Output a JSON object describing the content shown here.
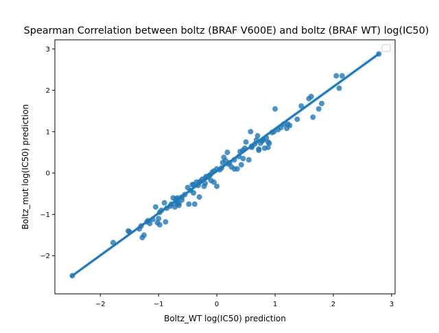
{
  "chart_data": {
    "type": "scatter",
    "title": "Spearman Correlation between boltz (BRAF V600E)  and boltz (BRAF WT)  log(IC50)",
    "xlabel": "Boltz_WT log(IC50) prediction",
    "ylabel": "Boltz_mut log(IC50) prediction",
    "xlim": [
      -2.78,
      3.06
    ],
    "ylim": [
      -2.92,
      3.22
    ],
    "xticks": [
      -2,
      -1,
      0,
      1,
      2,
      3
    ],
    "yticks": [
      -2,
      -1,
      0,
      1,
      2,
      3
    ],
    "xtick_labels": [
      "−2",
      "−1",
      "0",
      "1",
      "2",
      "3"
    ],
    "ytick_labels": [
      "−2",
      "−1",
      "0",
      "1",
      "2",
      "3"
    ],
    "grid": false,
    "legend": "top-right (empty)",
    "point_color": "#1f77b4",
    "regression": {
      "x": [
        -2.5,
        2.78
      ],
      "y": [
        -2.5,
        2.88
      ],
      "confidence_band": true
    },
    "points": {
      "x": [
        -2.48,
        -1.78,
        -1.52,
        -1.5,
        -1.33,
        -1.3,
        -1.28,
        -1.25,
        -1.2,
        -1.18,
        -1.15,
        -1.1,
        -1.05,
        -1.02,
        -1.0,
        -0.98,
        -0.95,
        -0.9,
        -0.88,
        -0.86,
        -0.8,
        -0.78,
        -0.75,
        -0.72,
        -0.7,
        -0.68,
        -0.67,
        -0.65,
        -0.6,
        -0.55,
        -0.5,
        -0.48,
        -0.45,
        -0.42,
        -0.4,
        -0.38,
        -0.35,
        -0.32,
        -0.3,
        -0.28,
        -0.25,
        -0.22,
        -0.2,
        -0.18,
        -0.15,
        -0.12,
        -0.1,
        -0.08,
        -0.05,
        0.0,
        0.0,
        0.05,
        0.08,
        0.1,
        0.12,
        0.15,
        0.18,
        0.2,
        0.25,
        0.3,
        0.35,
        0.38,
        0.4,
        0.42,
        0.45,
        0.48,
        0.5,
        0.55,
        0.58,
        0.6,
        0.65,
        0.68,
        0.7,
        0.72,
        0.75,
        0.78,
        0.8,
        0.82,
        0.85,
        0.88,
        0.9,
        0.95,
        0.98,
        1.0,
        1.05,
        1.1,
        1.15,
        1.2,
        1.25,
        1.38,
        1.45,
        1.58,
        1.62,
        1.65,
        1.75,
        1.8,
        2.05,
        2.1,
        2.15,
        2.78,
        -0.98,
        -0.7,
        -0.65,
        -0.3,
        -0.12,
        0.22,
        0.45,
        0.6,
        0.72,
        0.88,
        1.22,
        -0.2,
        -0.6,
        -0.4,
        -0.05,
        0.3
      ],
      "y": [
        -2.48,
        -1.68,
        -1.4,
        -1.42,
        -1.35,
        -1.28,
        -1.56,
        -1.5,
        -1.18,
        -1.15,
        -1.22,
        -1.12,
        -0.82,
        -1.2,
        -1.1,
        -0.95,
        -0.9,
        -0.72,
        -1.18,
        -0.85,
        -0.8,
        -0.75,
        -0.6,
        -0.82,
        -0.68,
        -0.75,
        -0.6,
        -0.72,
        -0.58,
        -0.52,
        -0.35,
        -0.75,
        -0.42,
        -0.28,
        -0.48,
        -0.75,
        -0.22,
        -0.3,
        -0.58,
        -0.2,
        -0.15,
        -0.32,
        -0.12,
        -0.08,
        -0.1,
        -0.05,
        -0.18,
        0.02,
        -0.22,
        0.1,
        -0.32,
        0.08,
        0.12,
        0.25,
        0.38,
        0.3,
        0.5,
        0.22,
        0.15,
        0.32,
        0.1,
        0.4,
        0.52,
        0.2,
        0.35,
        0.6,
        0.75,
        0.32,
        1.0,
        0.65,
        0.7,
        0.8,
        0.9,
        0.58,
        0.72,
        0.78,
        0.8,
        0.6,
        0.85,
        0.75,
        0.72,
        0.98,
        1.0,
        1.55,
        1.05,
        1.1,
        1.18,
        1.08,
        1.15,
        1.3,
        1.62,
        1.8,
        1.85,
        1.35,
        1.55,
        1.68,
        2.35,
        2.05,
        2.35,
        2.88,
        -1.25,
        -0.62,
        -0.78,
        -0.22,
        -0.05,
        0.25,
        0.55,
        0.62,
        0.55,
        0.62,
        1.18,
        -0.25,
        -0.65,
        -0.28,
        0.05,
        0.1
      ]
    }
  }
}
